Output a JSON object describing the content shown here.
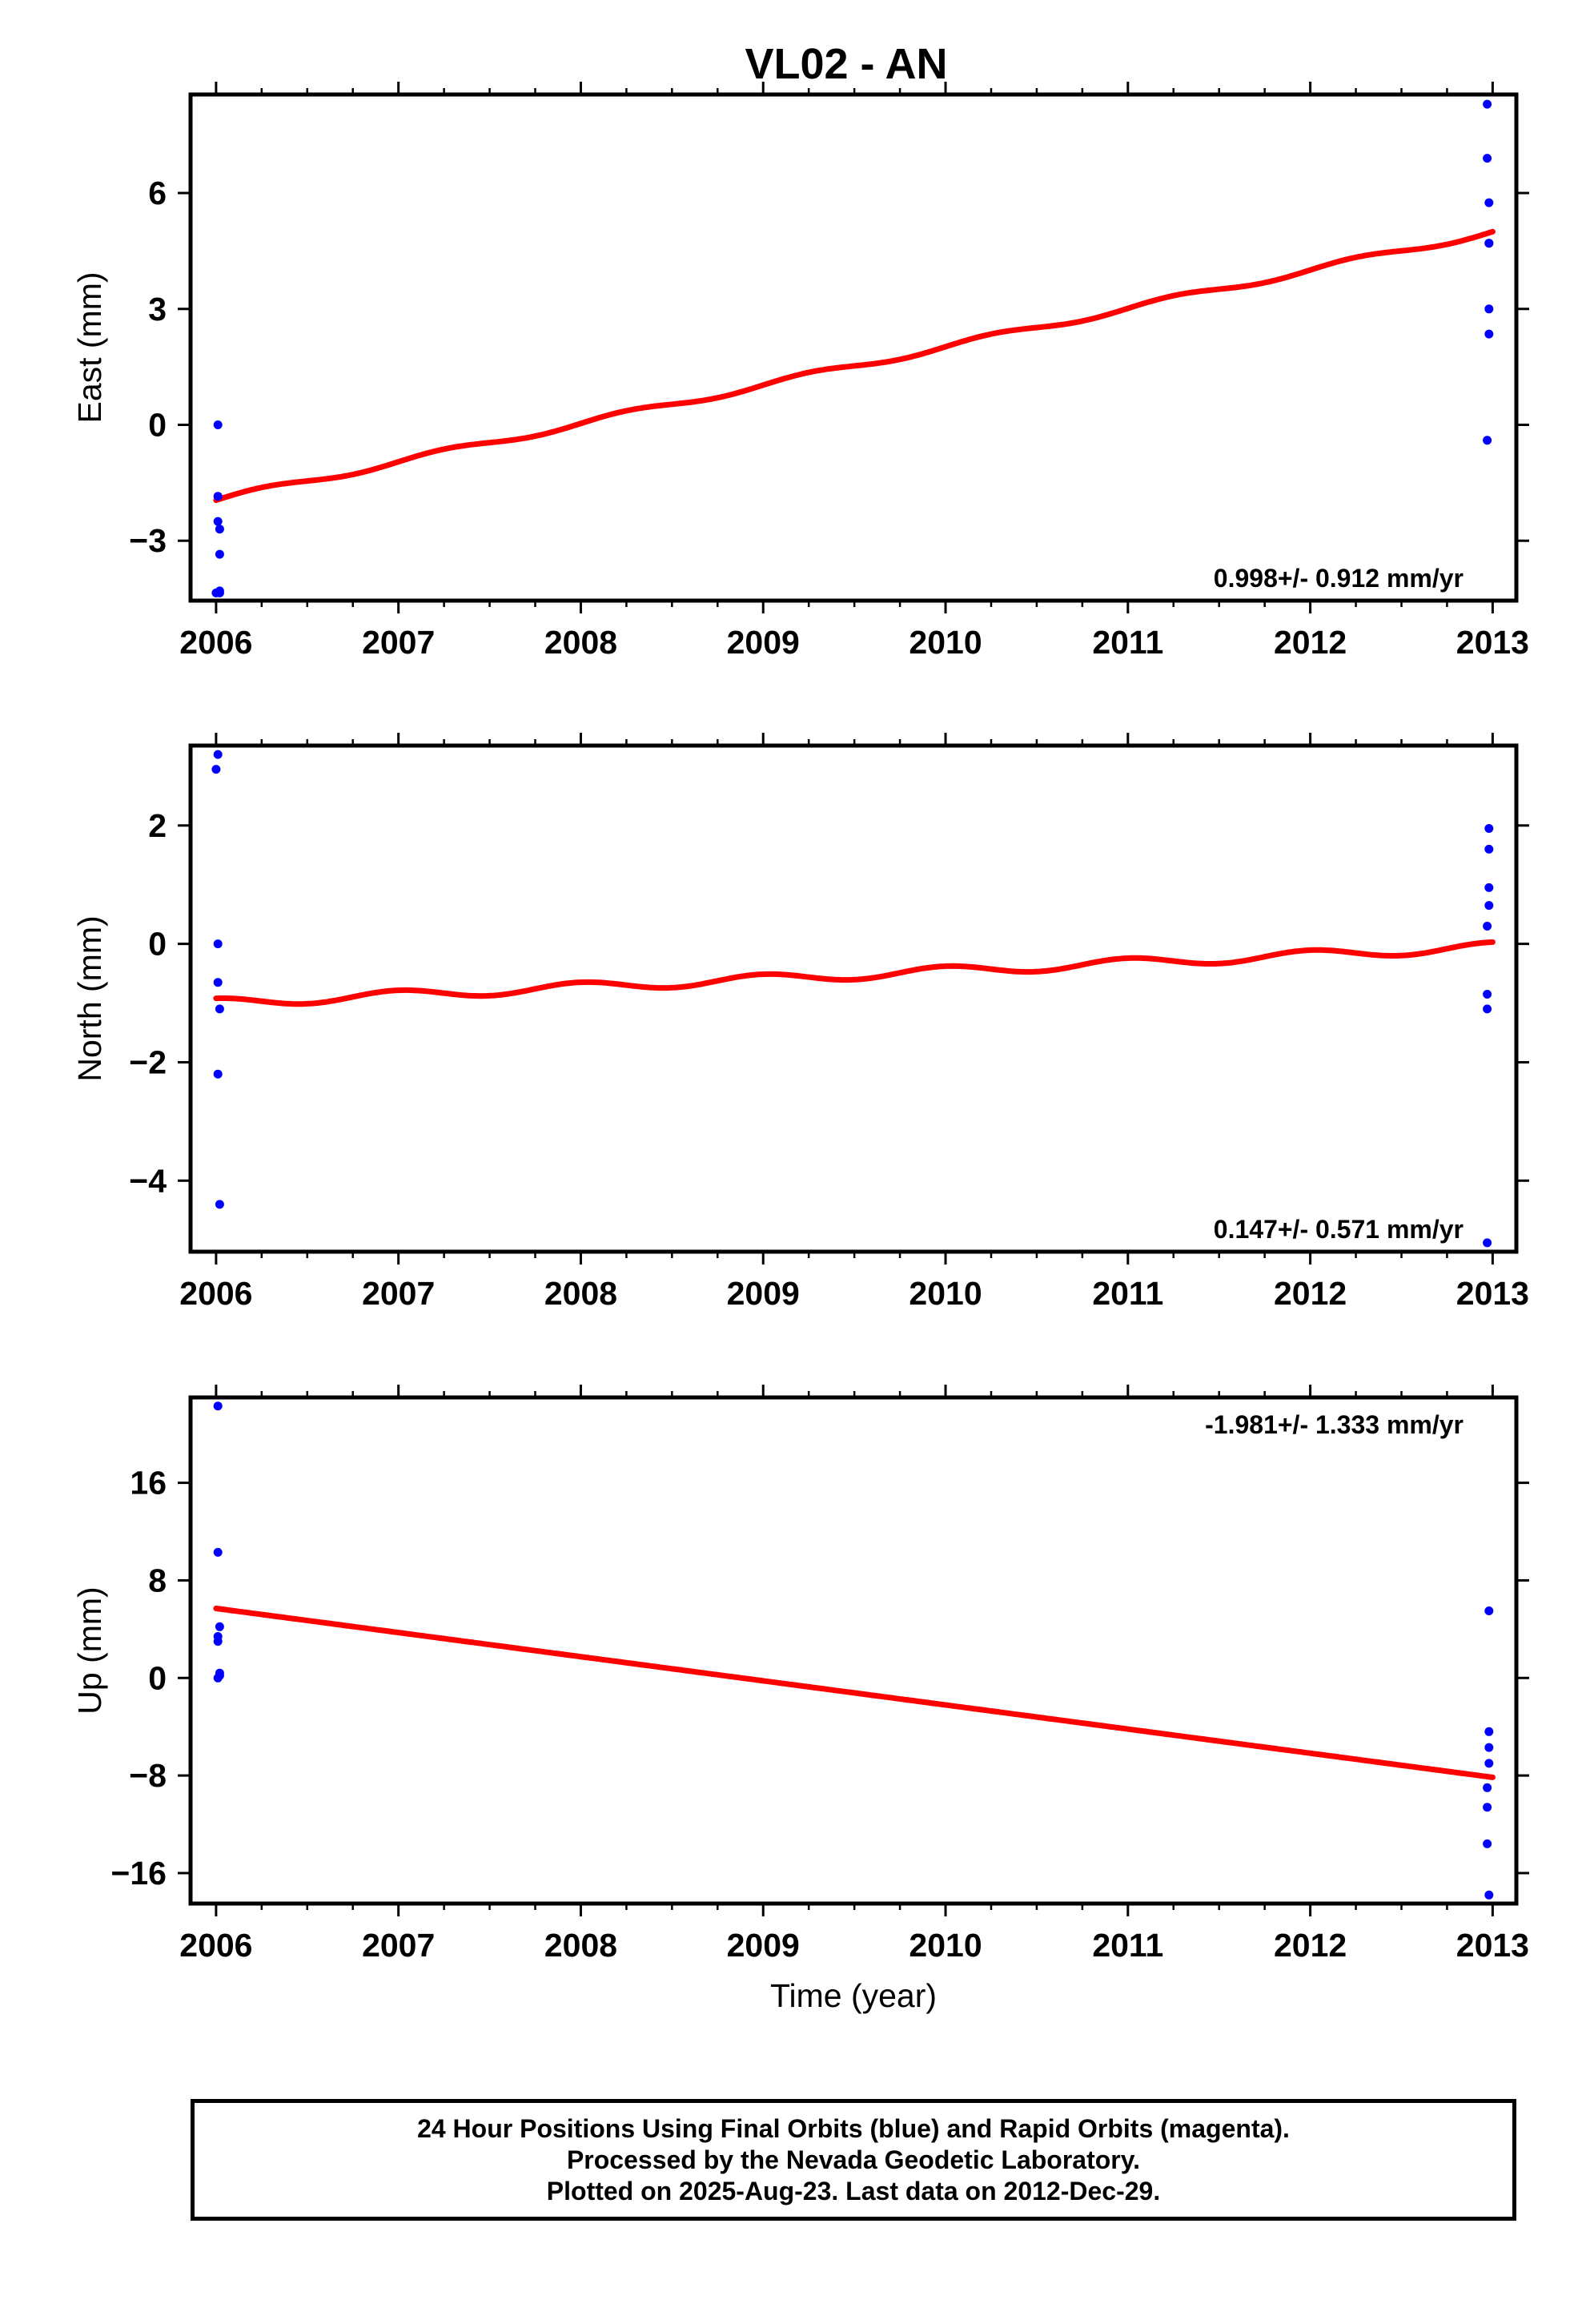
{
  "title": "VL02 - AN",
  "footer": {
    "line1": "24 Hour Positions Using Final Orbits (blue) and Rapid Orbits (magenta).",
    "line2": "Processed by the Nevada Geodetic Laboratory.",
    "line3": "Plotted on 2025-Aug-23. Last data on 2012-Dec-29."
  },
  "colors": {
    "data": "#0000ff",
    "model": "#ff0000",
    "axes": "#000000"
  },
  "chart_data": [
    {
      "type": "scatter",
      "ylabel": "East (mm)",
      "xlabel": "",
      "xlim": [
        2005.86,
        2013.13
      ],
      "ylim": [
        -4.55,
        8.55
      ],
      "xticks": [
        2006,
        2007,
        2008,
        2009,
        2010,
        2011,
        2012,
        2013
      ],
      "yticks": [
        -3,
        0,
        3,
        6
      ],
      "rate_label": "0.998+/- 0.912 mm/yr",
      "rate_position": "bottom-right",
      "series": [
        {
          "role": "data",
          "x": [
            2006.01,
            2006.01,
            2006.01,
            2006.02,
            2006.02,
            2006.02,
            2006.0,
            2006.02,
            2012.97,
            2012.97,
            2012.98,
            2012.98,
            2012.98,
            2012.98,
            2012.98,
            2012.97
          ],
          "y": [
            0.0,
            -1.85,
            -2.5,
            -2.7,
            -3.35,
            -4.3,
            -4.35,
            -4.35,
            8.3,
            6.9,
            5.75,
            4.7,
            4.7,
            3.0,
            2.35,
            -0.4
          ]
        },
        {
          "role": "model",
          "seasonal_amplitude": 0.08,
          "seasonal_phase": 0,
          "x": [
            2006.0,
            2013.0
          ],
          "y": [
            -1.95,
            5.0
          ]
        }
      ]
    },
    {
      "type": "scatter",
      "ylabel": "North (mm)",
      "xlabel": "",
      "xlim": [
        2005.86,
        2013.13
      ],
      "ylim": [
        -5.2,
        3.35
      ],
      "xticks": [
        2006,
        2007,
        2008,
        2009,
        2010,
        2011,
        2012,
        2013
      ],
      "yticks": [
        -4,
        -2,
        0,
        2
      ],
      "rate_label": "0.147+/- 0.571 mm/yr",
      "rate_position": "bottom-right",
      "series": [
        {
          "role": "data",
          "x": [
            2006.01,
            2006.0,
            2006.01,
            2006.01,
            2006.02,
            2006.01,
            2006.02,
            2012.98,
            2012.98,
            2012.98,
            2012.98,
            2012.97,
            2012.97,
            2012.97,
            2012.97
          ],
          "y": [
            3.2,
            2.95,
            0.0,
            -0.65,
            -1.1,
            -2.2,
            -4.4,
            1.95,
            1.6,
            0.95,
            0.65,
            0.3,
            -0.85,
            -1.1,
            -5.05
          ]
        },
        {
          "role": "model",
          "seasonal_amplitude": 0.08,
          "seasonal_phase": 1.6,
          "x": [
            2006.0,
            2013.0
          ],
          "y": [
            -1.0,
            -0.05
          ]
        }
      ]
    },
    {
      "type": "scatter",
      "ylabel": "Up (mm)",
      "xlabel": "Time (year)",
      "xlim": [
        2005.86,
        2013.13
      ],
      "ylim": [
        -18.5,
        23.0
      ],
      "xticks": [
        2006,
        2007,
        2008,
        2009,
        2010,
        2011,
        2012,
        2013
      ],
      "yticks": [
        -16,
        -8,
        0,
        8,
        16
      ],
      "rate_label": "-1.981+/- 1.333 mm/yr",
      "rate_position": "top-right",
      "series": [
        {
          "role": "data",
          "x": [
            2006.01,
            2006.01,
            2006.02,
            2006.01,
            2006.01,
            2006.02,
            2006.01,
            2006.02,
            2012.98,
            2012.98,
            2012.98,
            2012.98,
            2012.97,
            2012.97,
            2012.97,
            2012.98
          ],
          "y": [
            22.3,
            10.3,
            4.2,
            3.4,
            3.0,
            0.4,
            0.0,
            0.2,
            5.5,
            -4.4,
            -5.7,
            -7.0,
            -9.0,
            -10.6,
            -13.6,
            -17.8
          ]
        },
        {
          "role": "model",
          "seasonal_amplitude": 0,
          "seasonal_phase": 0,
          "x": [
            2006.0,
            2013.0
          ],
          "y": [
            5.7,
            -8.15
          ]
        }
      ]
    }
  ]
}
